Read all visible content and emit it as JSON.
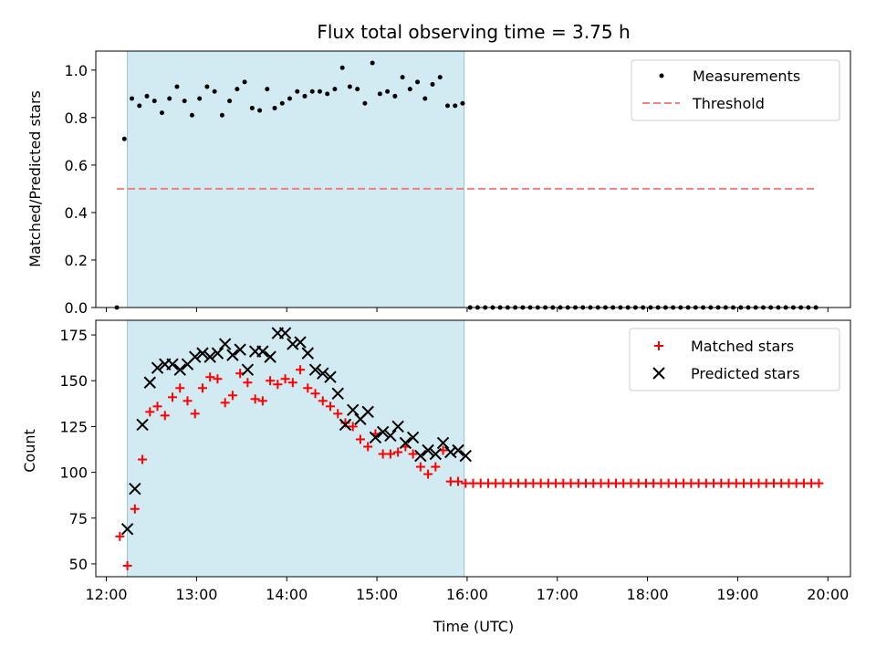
{
  "chart_data": [
    {
      "type": "scatter",
      "title": "Flux total observing time = 3.75 h",
      "xlabel": "",
      "ylabel": "Matched/Predicted stars",
      "xlim": [
        "11:53",
        "20:15"
      ],
      "ylim": [
        0,
        1.08
      ],
      "yticks": [
        "0.0",
        "0.2",
        "0.4",
        "0.6",
        "0.8",
        "1.0"
      ],
      "shaded_span": [
        "12:14",
        "15:58"
      ],
      "shade_color": "#add8e6",
      "legend": {
        "placement": "top-right",
        "entries": [
          "Measurements",
          "Threshold"
        ]
      },
      "series": [
        {
          "name": "Measurements",
          "marker": "dot",
          "color": "#000000",
          "points": [
            [
              "12:07",
              0.0
            ],
            [
              "12:12",
              0.71
            ],
            [
              "12:17",
              0.88
            ],
            [
              "12:22",
              0.85
            ],
            [
              "12:27",
              0.89
            ],
            [
              "12:32",
              0.87
            ],
            [
              "12:37",
              0.82
            ],
            [
              "12:42",
              0.88
            ],
            [
              "12:47",
              0.93
            ],
            [
              "12:52",
              0.87
            ],
            [
              "12:57",
              0.81
            ],
            [
              "13:02",
              0.88
            ],
            [
              "13:07",
              0.93
            ],
            [
              "13:12",
              0.91
            ],
            [
              "13:17",
              0.81
            ],
            [
              "13:22",
              0.87
            ],
            [
              "13:27",
              0.92
            ],
            [
              "13:32",
              0.95
            ],
            [
              "13:37",
              0.84
            ],
            [
              "13:42",
              0.83
            ],
            [
              "13:47",
              0.92
            ],
            [
              "13:52",
              0.84
            ],
            [
              "13:57",
              0.86
            ],
            [
              "14:02",
              0.88
            ],
            [
              "14:07",
              0.91
            ],
            [
              "14:12",
              0.89
            ],
            [
              "14:17",
              0.91
            ],
            [
              "14:22",
              0.91
            ],
            [
              "14:27",
              0.9
            ],
            [
              "14:32",
              0.92
            ],
            [
              "14:37",
              1.01
            ],
            [
              "14:42",
              0.93
            ],
            [
              "14:47",
              0.92
            ],
            [
              "14:52",
              0.86
            ],
            [
              "14:57",
              1.03
            ],
            [
              "15:02",
              0.9
            ],
            [
              "15:07",
              0.91
            ],
            [
              "15:12",
              0.89
            ],
            [
              "15:17",
              0.97
            ],
            [
              "15:22",
              0.92
            ],
            [
              "15:27",
              0.95
            ],
            [
              "15:32",
              0.88
            ],
            [
              "15:37",
              0.94
            ],
            [
              "15:42",
              0.97
            ],
            [
              "15:47",
              0.85
            ],
            [
              "15:52",
              0.85
            ],
            [
              "15:57",
              0.86
            ],
            [
              "16:02",
              0.0
            ],
            [
              "16:07",
              0.0
            ],
            [
              "16:12",
              0.0
            ],
            [
              "16:17",
              0.0
            ],
            [
              "16:22",
              0.0
            ],
            [
              "16:27",
              0.0
            ],
            [
              "16:32",
              0.0
            ],
            [
              "16:37",
              0.0
            ],
            [
              "16:42",
              0.0
            ],
            [
              "16:47",
              0.0
            ],
            [
              "16:52",
              0.0
            ],
            [
              "16:57",
              0.0
            ],
            [
              "17:02",
              0.0
            ],
            [
              "17:07",
              0.0
            ],
            [
              "17:12",
              0.0
            ],
            [
              "17:17",
              0.0
            ],
            [
              "17:22",
              0.0
            ],
            [
              "17:27",
              0.0
            ],
            [
              "17:32",
              0.0
            ],
            [
              "17:37",
              0.0
            ],
            [
              "17:42",
              0.0
            ],
            [
              "17:47",
              0.0
            ],
            [
              "17:52",
              0.0
            ],
            [
              "17:57",
              0.0
            ],
            [
              "18:02",
              0.0
            ],
            [
              "18:07",
              0.0
            ],
            [
              "18:12",
              0.0
            ],
            [
              "18:17",
              0.0
            ],
            [
              "18:22",
              0.0
            ],
            [
              "18:27",
              0.0
            ],
            [
              "18:32",
              0.0
            ],
            [
              "18:37",
              0.0
            ],
            [
              "18:42",
              0.0
            ],
            [
              "18:47",
              0.0
            ],
            [
              "18:52",
              0.0
            ],
            [
              "18:57",
              0.0
            ],
            [
              "19:02",
              0.0
            ],
            [
              "19:07",
              0.0
            ],
            [
              "19:12",
              0.0
            ],
            [
              "19:17",
              0.0
            ],
            [
              "19:22",
              0.0
            ],
            [
              "19:27",
              0.0
            ],
            [
              "19:32",
              0.0
            ],
            [
              "19:37",
              0.0
            ],
            [
              "19:42",
              0.0
            ],
            [
              "19:47",
              0.0
            ],
            [
              "19:52",
              0.0
            ]
          ]
        },
        {
          "name": "Threshold",
          "type": "line",
          "style": "dashed",
          "color": "#f08080",
          "points": [
            [
              "12:07",
              0.5
            ],
            [
              "19:52",
              0.5
            ]
          ]
        }
      ]
    },
    {
      "type": "scatter",
      "title": "",
      "xlabel": "Time (UTC)",
      "ylabel": "Count",
      "xlim": [
        "11:53",
        "20:15"
      ],
      "ylim": [
        43,
        183
      ],
      "yticks": [
        "50",
        "75",
        "100",
        "125",
        "150",
        "175"
      ],
      "xticks": [
        "12:00",
        "13:00",
        "14:00",
        "15:00",
        "16:00",
        "17:00",
        "18:00",
        "19:00",
        "20:00"
      ],
      "shaded_span": [
        "12:14",
        "15:58"
      ],
      "shade_color": "#add8e6",
      "legend": {
        "placement": "top-right",
        "entries": [
          "Matched stars",
          "Predicted stars"
        ]
      },
      "series": [
        {
          "name": "Matched stars",
          "marker": "plus",
          "color": "#ff0000",
          "points": [
            [
              "12:09",
              65
            ],
            [
              "12:14",
              49
            ],
            [
              "12:19",
              80
            ],
            [
              "12:24",
              107
            ],
            [
              "12:29",
              133
            ],
            [
              "12:34",
              136
            ],
            [
              "12:39",
              131
            ],
            [
              "12:44",
              141
            ],
            [
              "12:49",
              146
            ],
            [
              "12:54",
              139
            ],
            [
              "12:59",
              132
            ],
            [
              "13:04",
              146
            ],
            [
              "13:09",
              152
            ],
            [
              "13:14",
              151
            ],
            [
              "13:19",
              138
            ],
            [
              "13:24",
              142
            ],
            [
              "13:29",
              154
            ],
            [
              "13:34",
              149
            ],
            [
              "13:39",
              140
            ],
            [
              "13:44",
              139
            ],
            [
              "13:49",
              150
            ],
            [
              "13:54",
              148
            ],
            [
              "13:59",
              151
            ],
            [
              "14:04",
              149
            ],
            [
              "14:09",
              156
            ],
            [
              "14:14",
              146
            ],
            [
              "14:19",
              143
            ],
            [
              "14:24",
              139
            ],
            [
              "14:29",
              136
            ],
            [
              "14:34",
              132
            ],
            [
              "14:39",
              127
            ],
            [
              "14:44",
              125
            ],
            [
              "14:49",
              118
            ],
            [
              "14:54",
              114
            ],
            [
              "14:59",
              121
            ],
            [
              "15:04",
              110
            ],
            [
              "15:09",
              110
            ],
            [
              "15:14",
              111
            ],
            [
              "15:19",
              114
            ],
            [
              "15:24",
              110
            ],
            [
              "15:29",
              103
            ],
            [
              "15:34",
              99
            ],
            [
              "15:39",
              103
            ],
            [
              "15:44",
              112
            ],
            [
              "15:49",
              95
            ],
            [
              "15:54",
              95
            ],
            [
              "15:59",
              94
            ],
            [
              "16:04",
              94
            ],
            [
              "16:09",
              94
            ],
            [
              "16:14",
              94
            ],
            [
              "16:19",
              94
            ],
            [
              "16:24",
              94
            ],
            [
              "16:29",
              94
            ],
            [
              "16:34",
              94
            ],
            [
              "16:39",
              94
            ],
            [
              "16:44",
              94
            ],
            [
              "16:49",
              94
            ],
            [
              "16:54",
              94
            ],
            [
              "16:59",
              94
            ],
            [
              "17:04",
              94
            ],
            [
              "17:09",
              94
            ],
            [
              "17:14",
              94
            ],
            [
              "17:19",
              94
            ],
            [
              "17:24",
              94
            ],
            [
              "17:29",
              94
            ],
            [
              "17:34",
              94
            ],
            [
              "17:39",
              94
            ],
            [
              "17:44",
              94
            ],
            [
              "17:49",
              94
            ],
            [
              "17:54",
              94
            ],
            [
              "17:59",
              94
            ],
            [
              "18:04",
              94
            ],
            [
              "18:09",
              94
            ],
            [
              "18:14",
              94
            ],
            [
              "18:19",
              94
            ],
            [
              "18:24",
              94
            ],
            [
              "18:29",
              94
            ],
            [
              "18:34",
              94
            ],
            [
              "18:39",
              94
            ],
            [
              "18:44",
              94
            ],
            [
              "18:49",
              94
            ],
            [
              "18:54",
              94
            ],
            [
              "18:59",
              94
            ],
            [
              "19:04",
              94
            ],
            [
              "19:09",
              94
            ],
            [
              "19:14",
              94
            ],
            [
              "19:19",
              94
            ],
            [
              "19:24",
              94
            ],
            [
              "19:29",
              94
            ],
            [
              "19:34",
              94
            ],
            [
              "19:39",
              94
            ],
            [
              "19:44",
              94
            ],
            [
              "19:49",
              94
            ],
            [
              "19:54",
              94
            ]
          ]
        },
        {
          "name": "Predicted stars",
          "marker": "x",
          "color": "#000000",
          "points": [
            [
              "12:14",
              69
            ],
            [
              "12:19",
              91
            ],
            [
              "12:24",
              126
            ],
            [
              "12:29",
              149
            ],
            [
              "12:34",
              157
            ],
            [
              "12:39",
              159
            ],
            [
              "12:44",
              159
            ],
            [
              "12:49",
              156
            ],
            [
              "12:54",
              159
            ],
            [
              "12:59",
              163
            ],
            [
              "13:04",
              165
            ],
            [
              "13:09",
              163
            ],
            [
              "13:14",
              165
            ],
            [
              "13:19",
              170
            ],
            [
              "13:24",
              164
            ],
            [
              "13:29",
              167
            ],
            [
              "13:34",
              156
            ],
            [
              "13:39",
              166
            ],
            [
              "13:44",
              166
            ],
            [
              "13:49",
              163
            ],
            [
              "13:54",
              176
            ],
            [
              "13:59",
              176
            ],
            [
              "14:04",
              170
            ],
            [
              "14:09",
              171
            ],
            [
              "14:14",
              165
            ],
            [
              "14:19",
              156
            ],
            [
              "14:24",
              154
            ],
            [
              "14:29",
              152
            ],
            [
              "14:34",
              143
            ],
            [
              "14:39",
              126
            ],
            [
              "14:44",
              134
            ],
            [
              "14:49",
              129
            ],
            [
              "14:54",
              133
            ],
            [
              "14:59",
              119
            ],
            [
              "15:04",
              122
            ],
            [
              "15:09",
              120
            ],
            [
              "15:14",
              125
            ],
            [
              "15:19",
              116
            ],
            [
              "15:24",
              119
            ],
            [
              "15:29",
              109
            ],
            [
              "15:34",
              112
            ],
            [
              "15:39",
              110
            ],
            [
              "15:44",
              116
            ],
            [
              "15:49",
              111
            ],
            [
              "15:54",
              112
            ],
            [
              "15:59",
              109
            ]
          ]
        }
      ]
    }
  ]
}
